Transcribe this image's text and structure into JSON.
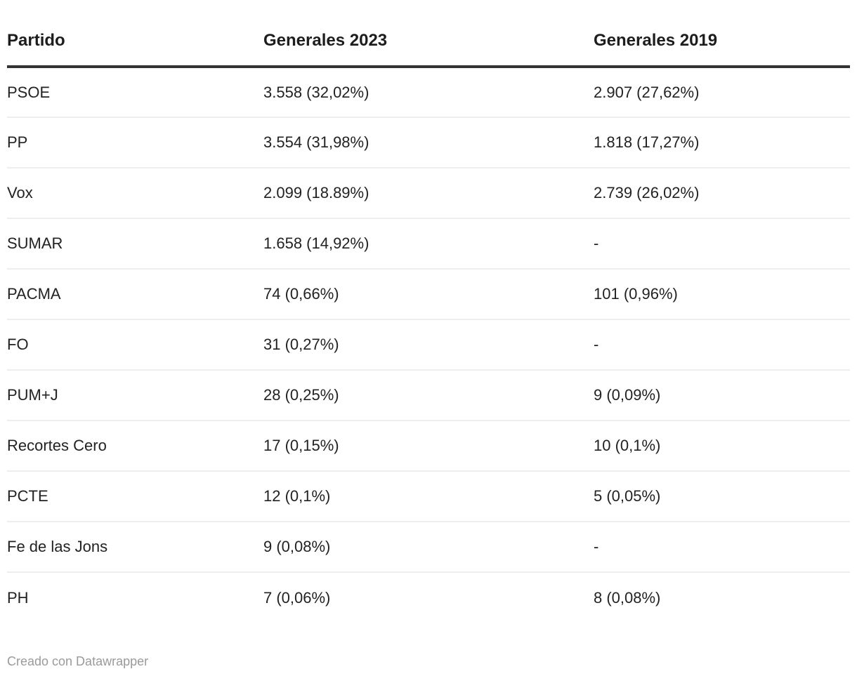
{
  "chart_data": {
    "type": "table",
    "columns": [
      "Partido",
      "Generales 2023",
      "Generales 2019"
    ],
    "rows": [
      [
        "PSOE",
        "3.558 (32,02%)",
        "2.907 (27,62%)"
      ],
      [
        "PP",
        "3.554 (31,98%)",
        "1.818 (17,27%)"
      ],
      [
        "Vox",
        "2.099 (18.89%)",
        "2.739 (26,02%)"
      ],
      [
        "SUMAR",
        "1.658 (14,92%)",
        "-"
      ],
      [
        "PACMA",
        "74 (0,66%)",
        "101 (0,96%)"
      ],
      [
        "FO",
        "31 (0,27%)",
        "-"
      ],
      [
        "PUM+J",
        "28 (0,25%)",
        "9 (0,09%)"
      ],
      [
        "Recortes Cero",
        "17 (0,15%)",
        "10 (0,1%)"
      ],
      [
        "PCTE",
        "12 (0,1%)",
        "5 (0,05%)"
      ],
      [
        "Fe de las Jons",
        "9 (0,08%)",
        "-"
      ],
      [
        "PH",
        "7 (0,06%)",
        "8 (0,08%)"
      ]
    ],
    "legend_position": "none",
    "grid": "horizontal-row-dividers"
  },
  "footer": {
    "credit": "Creado con Datawrapper"
  },
  "colors": {
    "header_rule": "#333333",
    "row_divider": "#eeeeee",
    "text": "#222222",
    "header_text": "#1d1d1d",
    "muted_text": "#9a9a9a",
    "background": "#ffffff"
  }
}
